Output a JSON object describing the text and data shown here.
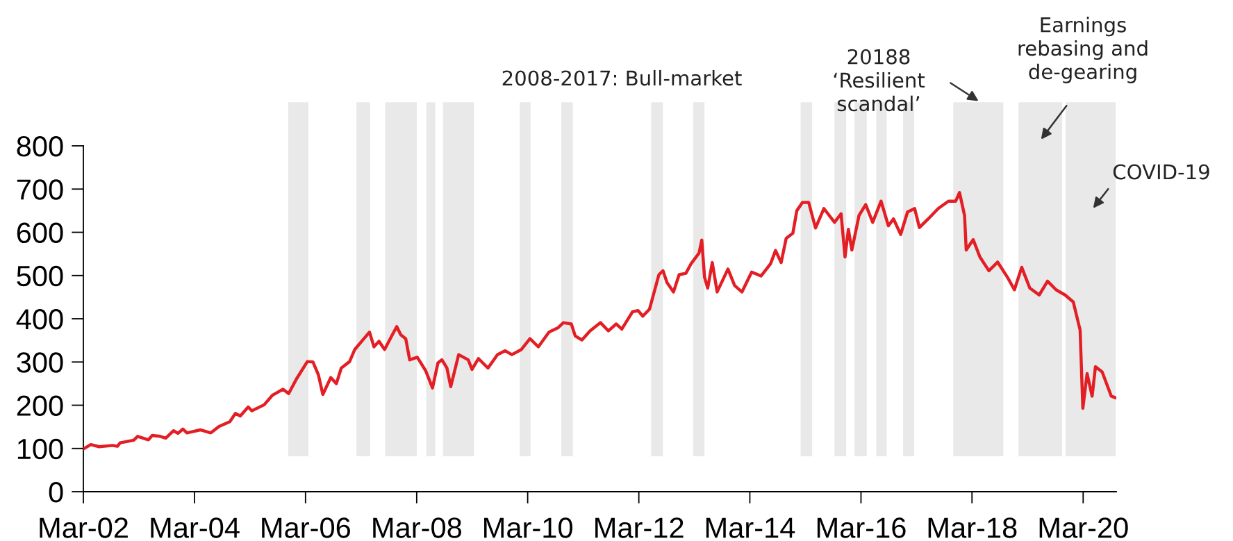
{
  "chart_data": {
    "type": "line",
    "annotations": [
      "2008-2017: Bull-market",
      "20188\n‘Resilient\nscandal’",
      "Earnings\nrebasing and\nde-gearing",
      "COVID-19"
    ],
    "xlim": [
      "2002-03-01",
      "2020-10-05"
    ],
    "xticks": [
      {
        "value": "2002-03-01",
        "label": "Mar-02"
      },
      {
        "value": "2004-03-01",
        "label": "Mar-04"
      },
      {
        "value": "2006-03-01",
        "label": "Mar-06"
      },
      {
        "value": "2008-03-01",
        "label": "Mar-08"
      },
      {
        "value": "2010-03-01",
        "label": "Mar-10"
      },
      {
        "value": "2012-03-01",
        "label": "Mar-12"
      },
      {
        "value": "2014-03-01",
        "label": "Mar-14"
      },
      {
        "value": "2016-03-01",
        "label": "Mar-16"
      },
      {
        "value": "2018-03-01",
        "label": "Mar-18"
      },
      {
        "value": "2020-03-01",
        "label": "Mar-20"
      }
    ],
    "ylim": [
      0,
      800
    ],
    "yticks": [
      0,
      100,
      200,
      300,
      400,
      500,
      600,
      700,
      800
    ],
    "grid": false,
    "marker": "none",
    "line_style": "solid",
    "series": [
      {
        "color": "#e31e24",
        "x": [
          "2002-03-02",
          "2002-04-19",
          "2002-06-13",
          "2002-09-09",
          "2002-10-11",
          "2002-10-29",
          "2003-01-26",
          "2003-02-21",
          "2003-05-03",
          "2003-05-28",
          "2003-07-19",
          "2003-08-25",
          "2003-10-15",
          "2003-11-14",
          "2003-12-16",
          "2004-01-11",
          "2004-04-08",
          "2004-06-16",
          "2004-08-10",
          "2004-10-19",
          "2004-11-25",
          "2004-12-27",
          "2005-02-17",
          "2005-03-13",
          "2005-06-02",
          "2005-07-26",
          "2005-10-04",
          "2005-11-10",
          "2006-01-01",
          "2006-03-13",
          "2006-04-19",
          "2006-05-25",
          "2006-06-23",
          "2006-08-14",
          "2006-09-20",
          "2006-10-22",
          "2006-12-16",
          "2007-01-19",
          "2007-03-20",
          "2007-04-26",
          "2007-05-25",
          "2007-06-27",
          "2007-08-03",
          "2007-09-23",
          "2007-10-22",
          "2007-11-17",
          "2007-12-20",
          "2008-01-15",
          "2008-03-05",
          "2008-04-29",
          "2008-06-13",
          "2008-07-19",
          "2008-08-14",
          "2008-09-16",
          "2008-10-11",
          "2008-12-02",
          "2009-02-03",
          "2009-02-28",
          "2009-04-11",
          "2009-06-13",
          "2009-08-14",
          "2009-10-04",
          "2009-11-17",
          "2010-01-19",
          "2010-03-16",
          "2010-05-10",
          "2010-07-19",
          "2010-09-16",
          "2010-10-22",
          "2010-12-13",
          "2011-01-08",
          "2011-02-21",
          "2011-04-15",
          "2011-06-23",
          "2011-08-14",
          "2011-10-04",
          "2011-11-10",
          "2012-01-19",
          "2012-02-25",
          "2012-03-27",
          "2012-05-10",
          "2012-07-11",
          "2012-08-07",
          "2012-09-02",
          "2012-10-15",
          "2012-11-21",
          "2013-01-04",
          "2013-02-07",
          "2013-04-01",
          "2013-04-19",
          "2013-05-07",
          "2013-05-28",
          "2013-06-27",
          "2013-07-29",
          "2013-10-08",
          "2013-11-21",
          "2014-01-08",
          "2014-03-13",
          "2014-05-14",
          "2014-07-15",
          "2014-08-17",
          "2014-09-23",
          "2014-10-26",
          "2014-12-09",
          "2015-01-04",
          "2015-02-10",
          "2015-03-23",
          "2015-05-07",
          "2015-07-01",
          "2015-09-09",
          "2015-10-22",
          "2015-11-17",
          "2015-12-09",
          "2016-01-01",
          "2016-02-17",
          "2016-04-01",
          "2016-05-17",
          "2016-07-11",
          "2016-08-28",
          "2016-10-01",
          "2016-11-17",
          "2017-01-01",
          "2017-02-17",
          "2017-03-20",
          "2017-05-17",
          "2017-07-22",
          "2017-09-27",
          "2017-11-14",
          "2017-12-09",
          "2018-01-11",
          "2018-01-22",
          "2018-03-09",
          "2018-04-22",
          "2018-06-20",
          "2018-08-17",
          "2018-10-22",
          "2018-12-05",
          "2019-01-22",
          "2019-03-16",
          "2019-05-17",
          "2019-07-11",
          "2019-09-05",
          "2019-11-03",
          "2019-12-27",
          "2020-02-10",
          "2020-02-28",
          "2020-03-27",
          "2020-04-29",
          "2020-05-21",
          "2020-07-04",
          "2020-09-02",
          "2020-10-01"
        ],
        "values": [
          99,
          109,
          104,
          107,
          105,
          113,
          119,
          128,
          120,
          130,
          128,
          124,
          141,
          135,
          145,
          136,
          143,
          136,
          151,
          162,
          181,
          175,
          196,
          187,
          201,
          223,
          237,
          227,
          261,
          301,
          300,
          270,
          225,
          264,
          250,
          286,
          301,
          329,
          354,
          369,
          335,
          348,
          329,
          363,
          382,
          363,
          354,
          305,
          311,
          280,
          240,
          298,
          305,
          286,
          243,
          317,
          305,
          283,
          308,
          286,
          317,
          326,
          317,
          329,
          354,
          335,
          369,
          379,
          391,
          388,
          360,
          351,
          372,
          391,
          372,
          388,
          376,
          416,
          419,
          406,
          422,
          502,
          511,
          484,
          462,
          502,
          505,
          527,
          552,
          582,
          496,
          471,
          530,
          462,
          515,
          477,
          462,
          508,
          499,
          527,
          558,
          530,
          586,
          598,
          650,
          669,
          669,
          610,
          655,
          623,
          643,
          543,
          607,
          559,
          639,
          664,
          623,
          672,
          615,
          631,
          595,
          647,
          655,
          611,
          631,
          655,
          672,
          672,
          692,
          639,
          559,
          583,
          543,
          511,
          531,
          495,
          467,
          519,
          471,
          455,
          487,
          467,
          455,
          439,
          374,
          193,
          273,
          221,
          289,
          277,
          221,
          217
        ]
      }
    ],
    "bands": [
      {
        "axis": "x",
        "from": "2005-11-07",
        "to": "2006-03-20",
        "color": "#e9e9e9"
      },
      {
        "axis": "x",
        "from": "2007-01-30",
        "to": "2007-04-29",
        "color": "#e9e9e9"
      },
      {
        "axis": "x",
        "from": "2007-08-07",
        "to": "2008-03-02",
        "color": "#e9e9e9"
      },
      {
        "axis": "x",
        "from": "2008-05-03",
        "to": "2008-07-01",
        "color": "#e9e9e9"
      },
      {
        "axis": "x",
        "from": "2008-08-21",
        "to": "2009-03-13",
        "color": "#e9e9e9"
      },
      {
        "axis": "x",
        "from": "2010-01-08",
        "to": "2010-03-20",
        "color": "#e9e9e9"
      },
      {
        "axis": "x",
        "from": "2010-10-08",
        "to": "2010-12-23",
        "color": "#e9e9e9"
      },
      {
        "axis": "x",
        "from": "2012-05-21",
        "to": "2012-08-07",
        "color": "#e9e9e9"
      },
      {
        "axis": "x",
        "from": "2013-02-21",
        "to": "2013-05-07",
        "color": "#e9e9e9"
      },
      {
        "axis": "x",
        "from": "2015-01-29",
        "to": "2015-04-15",
        "color": "#e9e9e9"
      },
      {
        "axis": "x",
        "from": "2015-09-09",
        "to": "2015-11-25",
        "color": "#e9e9e9"
      },
      {
        "axis": "x",
        "from": "2016-01-19",
        "to": "2016-04-08",
        "color": "#e9e9e9"
      },
      {
        "axis": "x",
        "from": "2016-06-09",
        "to": "2016-08-17",
        "color": "#e9e9e9"
      },
      {
        "axis": "x",
        "from": "2016-12-02",
        "to": "2017-02-14",
        "color": "#e9e9e9"
      },
      {
        "axis": "x",
        "from": "2017-10-29",
        "to": "2018-09-23",
        "color": "#e9e9e9"
      },
      {
        "axis": "x",
        "from": "2019-01-01",
        "to": "2019-10-15",
        "color": "#e9e9e9"
      },
      {
        "axis": "x",
        "from": "2019-11-07",
        "to": "2020-10-01",
        "color": "#e9e9e9"
      }
    ]
  }
}
